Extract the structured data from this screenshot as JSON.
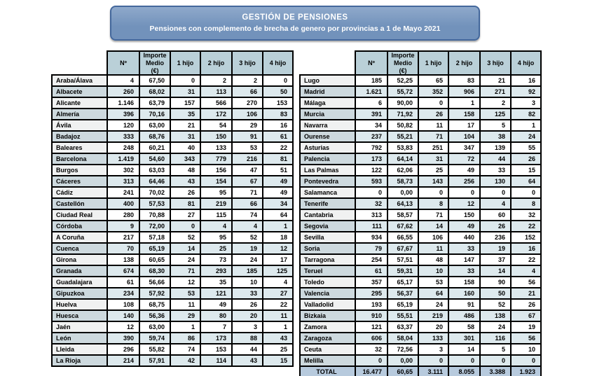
{
  "banner": {
    "title": "GESTIÓN DE  PENSIONES",
    "subtitle": "Pensiones con complemento de brecha de genero por provincias a 1 de Mayo 2021"
  },
  "columns": [
    "Nº",
    "Importe Medio (€)",
    "1 hijo",
    "2 hijo",
    "3 hijo",
    "4 hijo"
  ],
  "left_table": {
    "rows": [
      {
        "name": "Araba/Álava",
        "values": [
          "4",
          "67,50",
          "0",
          "2",
          "2",
          "0"
        ]
      },
      {
        "name": "Albacete",
        "values": [
          "260",
          "68,02",
          "31",
          "113",
          "66",
          "50"
        ]
      },
      {
        "name": "Alicante",
        "values": [
          "1.146",
          "63,79",
          "157",
          "566",
          "270",
          "153"
        ]
      },
      {
        "name": "Almería",
        "values": [
          "396",
          "70,16",
          "35",
          "172",
          "106",
          "83"
        ]
      },
      {
        "name": "Ávila",
        "values": [
          "120",
          "63,00",
          "21",
          "54",
          "29",
          "16"
        ]
      },
      {
        "name": "Badajoz",
        "values": [
          "333",
          "68,76",
          "31",
          "150",
          "91",
          "61"
        ]
      },
      {
        "name": "Baleares",
        "values": [
          "248",
          "60,21",
          "40",
          "133",
          "53",
          "22"
        ]
      },
      {
        "name": "Barcelona",
        "values": [
          "1.419",
          "54,60",
          "343",
          "779",
          "216",
          "81"
        ]
      },
      {
        "name": "Burgos",
        "values": [
          "302",
          "63,03",
          "48",
          "156",
          "47",
          "51"
        ]
      },
      {
        "name": "Cáceres",
        "values": [
          "313",
          "64,46",
          "43",
          "154",
          "67",
          "49"
        ]
      },
      {
        "name": "Cádiz",
        "values": [
          "241",
          "70,02",
          "26",
          "95",
          "71",
          "49"
        ]
      },
      {
        "name": "Castellón",
        "values": [
          "400",
          "57,53",
          "81",
          "219",
          "66",
          "34"
        ]
      },
      {
        "name": "Ciudad Real",
        "values": [
          "280",
          "70,88",
          "27",
          "115",
          "74",
          "64"
        ]
      },
      {
        "name": "Córdoba",
        "values": [
          "9",
          "72,00",
          "0",
          "4",
          "4",
          "1"
        ]
      },
      {
        "name": "A Coruña",
        "values": [
          "217",
          "57,18",
          "52",
          "95",
          "52",
          "18"
        ]
      },
      {
        "name": "Cuenca",
        "values": [
          "70",
          "65,19",
          "14",
          "25",
          "19",
          "12"
        ]
      },
      {
        "name": "Girona",
        "values": [
          "138",
          "60,65",
          "24",
          "73",
          "24",
          "17"
        ]
      },
      {
        "name": "Granada",
        "values": [
          "674",
          "68,30",
          "71",
          "293",
          "185",
          "125"
        ]
      },
      {
        "name": "Guadalajara",
        "values": [
          "61",
          "56,66",
          "12",
          "35",
          "10",
          "4"
        ]
      },
      {
        "name": "Gipuzkoa",
        "values": [
          "234",
          "57,92",
          "53",
          "121",
          "33",
          "27"
        ]
      },
      {
        "name": "Huelva",
        "values": [
          "108",
          "68,75",
          "11",
          "49",
          "26",
          "22"
        ]
      },
      {
        "name": "Huesca",
        "values": [
          "140",
          "56,36",
          "29",
          "80",
          "20",
          "11"
        ]
      },
      {
        "name": "Jaén",
        "values": [
          "12",
          "63,00",
          "1",
          "7",
          "3",
          "1"
        ]
      },
      {
        "name": "León",
        "values": [
          "390",
          "59,74",
          "86",
          "173",
          "88",
          "43"
        ]
      },
      {
        "name": "Lleida",
        "values": [
          "296",
          "55,82",
          "74",
          "153",
          "44",
          "25"
        ]
      },
      {
        "name": "La Rioja",
        "values": [
          "214",
          "57,91",
          "42",
          "114",
          "43",
          "15"
        ]
      }
    ]
  },
  "right_table": {
    "rows": [
      {
        "name": "Lugo",
        "values": [
          "185",
          "52,25",
          "65",
          "83",
          "21",
          "16"
        ]
      },
      {
        "name": "Madrid",
        "values": [
          "1.621",
          "55,72",
          "352",
          "906",
          "271",
          "92"
        ]
      },
      {
        "name": "Málaga",
        "values": [
          "6",
          "90,00",
          "0",
          "1",
          "2",
          "3"
        ]
      },
      {
        "name": "Murcia",
        "values": [
          "391",
          "71,92",
          "26",
          "158",
          "125",
          "82"
        ]
      },
      {
        "name": "Navarra",
        "values": [
          "34",
          "50,82",
          "11",
          "17",
          "5",
          "1"
        ]
      },
      {
        "name": "Ourense",
        "values": [
          "237",
          "55,21",
          "71",
          "104",
          "38",
          "24"
        ]
      },
      {
        "name": "Asturias",
        "values": [
          "792",
          "53,83",
          "251",
          "347",
          "139",
          "55"
        ]
      },
      {
        "name": "Palencia",
        "values": [
          "173",
          "64,14",
          "31",
          "72",
          "44",
          "26"
        ]
      },
      {
        "name": "Las Palmas",
        "values": [
          "122",
          "62,06",
          "25",
          "49",
          "33",
          "15"
        ]
      },
      {
        "name": "Pontevedra",
        "values": [
          "593",
          "58,73",
          "143",
          "256",
          "130",
          "64"
        ]
      },
      {
        "name": "Salamanca",
        "values": [
          "0",
          "0,00",
          "0",
          "0",
          "0",
          "0"
        ]
      },
      {
        "name": "Tenerife",
        "values": [
          "32",
          "64,13",
          "8",
          "12",
          "4",
          "8"
        ]
      },
      {
        "name": "Cantabria",
        "values": [
          "313",
          "58,57",
          "71",
          "150",
          "60",
          "32"
        ]
      },
      {
        "name": "Segovia",
        "values": [
          "111",
          "67,62",
          "14",
          "49",
          "26",
          "22"
        ]
      },
      {
        "name": "Sevilla",
        "values": [
          "934",
          "66,55",
          "106",
          "440",
          "236",
          "152"
        ]
      },
      {
        "name": "Soria",
        "values": [
          "79",
          "67,67",
          "11",
          "33",
          "19",
          "16"
        ]
      },
      {
        "name": "Tarragona",
        "values": [
          "254",
          "57,51",
          "48",
          "147",
          "37",
          "22"
        ]
      },
      {
        "name": "Teruel",
        "values": [
          "61",
          "59,31",
          "10",
          "33",
          "14",
          "4"
        ]
      },
      {
        "name": "Toledo",
        "values": [
          "357",
          "65,17",
          "53",
          "158",
          "90",
          "56"
        ]
      },
      {
        "name": "Valencia",
        "values": [
          "295",
          "56,37",
          "64",
          "160",
          "50",
          "21"
        ]
      },
      {
        "name": "Valladolid",
        "values": [
          "193",
          "65,19",
          "24",
          "91",
          "52",
          "26"
        ]
      },
      {
        "name": "Bizkaia",
        "values": [
          "910",
          "55,51",
          "219",
          "486",
          "138",
          "67"
        ]
      },
      {
        "name": "Zamora",
        "values": [
          "121",
          "63,37",
          "20",
          "58",
          "24",
          "19"
        ]
      },
      {
        "name": "Zaragoza",
        "values": [
          "606",
          "58,04",
          "133",
          "301",
          "116",
          "56"
        ]
      },
      {
        "name": "Ceuta",
        "values": [
          "32",
          "72,56",
          "3",
          "14",
          "5",
          "10"
        ]
      },
      {
        "name": "Melilla",
        "values": [
          "0",
          "0,00",
          "0",
          "0",
          "0",
          "0"
        ]
      }
    ],
    "total": {
      "name": "TOTAL",
      "values": [
        "16.477",
        "60,65",
        "3.111",
        "8.055",
        "3.388",
        "1.923"
      ]
    }
  },
  "colors": {
    "banner_bg": "#7292bb",
    "banner_bg_light": "#8fa9cb",
    "banner_border": "#44689c",
    "header_bg": "#bad0d8",
    "stripe_data_bg": "#dde9ed",
    "stripe_name_bg": "#cdd9de",
    "plain_name_bg": "#f0f1f1",
    "total_bg": "#b7cadd"
  }
}
